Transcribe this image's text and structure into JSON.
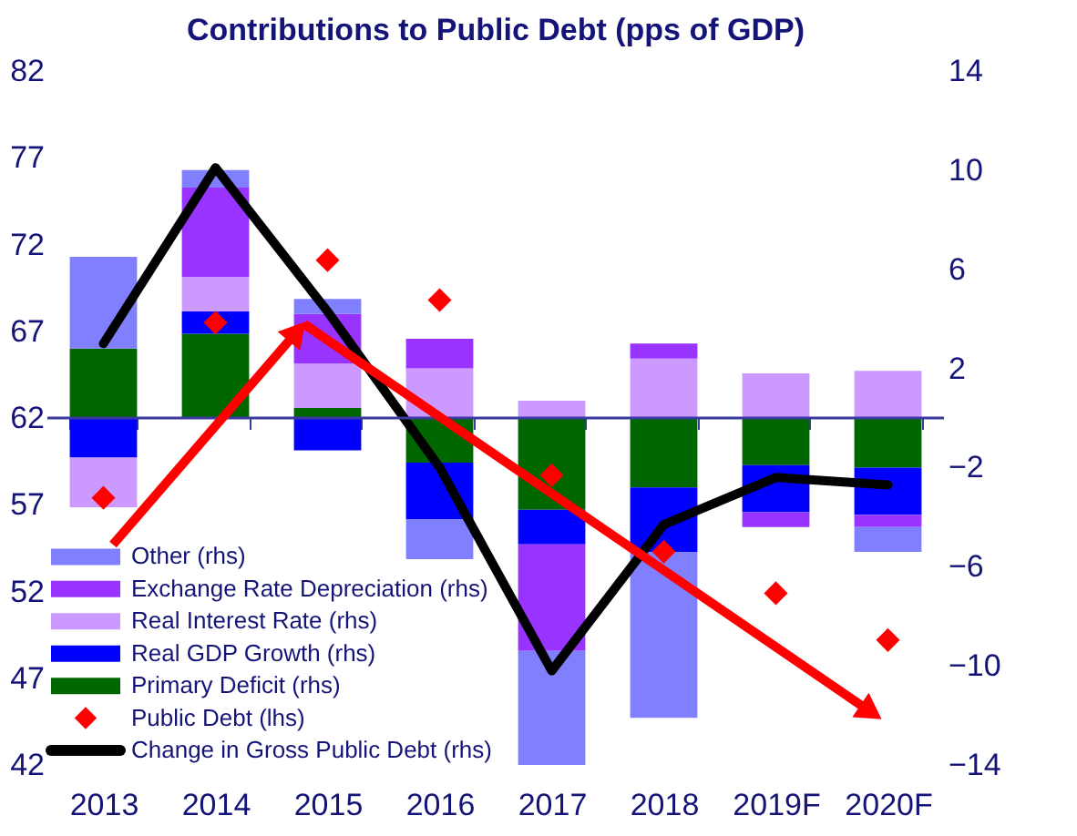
{
  "chart_data": {
    "type": "bar",
    "stacked": true,
    "title": "Contributions to Public Debt (pps of GDP)",
    "categories": [
      "2013",
      "2014",
      "2015",
      "2016",
      "2017",
      "2018",
      "2019F",
      "2020F"
    ],
    "series": [
      {
        "name": "Primary Deficit (rhs)",
        "color": "#006600",
        "axis": "y2",
        "values": [
          2.8,
          3.4,
          0.4,
          -1.8,
          -3.7,
          -2.8,
          -1.9,
          -2.0
        ]
      },
      {
        "name": "Real GDP Growth (rhs)",
        "color": "#0000ff",
        "axis": "y2",
        "values": [
          -1.6,
          0.9,
          -1.3,
          -2.3,
          -1.4,
          -2.6,
          -1.9,
          -1.9
        ]
      },
      {
        "name": "Real Interest Rate  (rhs)",
        "color": "#cc99ff",
        "axis": "y2",
        "values": [
          -2.0,
          1.4,
          1.8,
          2.0,
          0.7,
          2.4,
          1.8,
          1.9
        ]
      },
      {
        "name": "Exchange Rate Depreciation (rhs)",
        "color": "#9933ff",
        "axis": "y2",
        "values": [
          0,
          3.6,
          2.0,
          1.2,
          -4.3,
          0.6,
          -0.6,
          -0.5
        ]
      },
      {
        "name": "Other (rhs)",
        "color": "#8080ff",
        "axis": "y2",
        "values": [
          3.7,
          0.7,
          0.6,
          -1.6,
          -4.6,
          -6.7,
          0,
          -1.0
        ]
      },
      {
        "name": "Public Debt (lhs)",
        "type": "scatter",
        "marker": "diamond",
        "color": "#ff0000",
        "values": [
          57.4,
          67.5,
          71.1,
          68.8,
          58.7,
          54.3,
          51.9,
          49.2
        ]
      },
      {
        "name": "Change in Gross Public Debt (rhs)",
        "type": "line",
        "color": "#000000",
        "axis": "y2",
        "values": [
          3.0,
          10.1,
          4.3,
          -2.0,
          -10.2,
          -4.3,
          -2.4,
          -2.7
        ]
      }
    ],
    "ylim": [
      42,
      82
    ],
    "yticks": [
      42,
      47,
      52,
      57,
      62,
      67,
      72,
      77,
      82
    ],
    "y2lim": [
      -14,
      14
    ],
    "y2ticks": [
      -14,
      -10,
      -6,
      -2,
      2,
      6,
      10,
      14
    ],
    "ref_lines": [
      {
        "axis": "y2",
        "value": 0,
        "color": "#3a3aa0"
      }
    ],
    "grid": false,
    "legend": "bottom left"
  }
}
